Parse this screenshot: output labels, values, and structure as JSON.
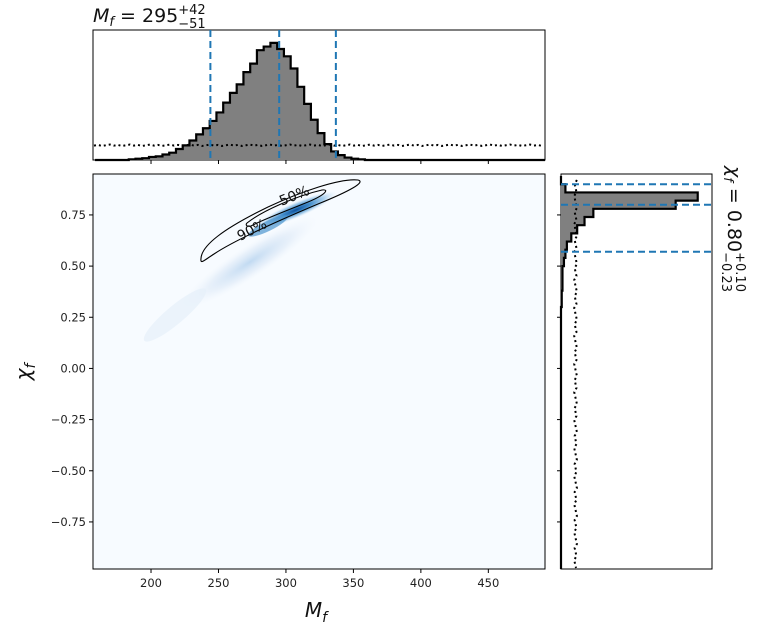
{
  "chart_data": {
    "type": "corner",
    "top_title": {
      "base": "M",
      "sub": "f",
      "eq": " = ",
      "value": "295",
      "plus": "+42",
      "minus": "−51"
    },
    "right_title": {
      "base": "χ",
      "sub": "f",
      "eq": " = ",
      "value": "0.80",
      "plus": "+0.10",
      "minus": "−0.23"
    },
    "xlabel": {
      "base": "M",
      "sub": "f"
    },
    "ylabel": {
      "base": "χ",
      "sub": "f"
    },
    "x_range": [
      157,
      492
    ],
    "y_range": [
      -0.98,
      0.95
    ],
    "x_ticks": [
      200,
      250,
      300,
      350,
      400,
      450
    ],
    "x_tick_labels": [
      "200",
      "250",
      "300",
      "350",
      "400",
      "450"
    ],
    "y_ticks": [
      0.75,
      0.5,
      0.25,
      0.0,
      -0.25,
      -0.5,
      -0.75
    ],
    "y_tick_labels": [
      "0.75",
      "0.50",
      "0.25",
      "0.00",
      "−0.25",
      "−0.50",
      "−0.75"
    ],
    "mf_quantiles": [
      244,
      295,
      337
    ],
    "chi_quantiles": [
      0.57,
      0.8,
      0.9
    ],
    "contour_labels": [
      "50%",
      "90%"
    ],
    "mf_histogram": {
      "bin_start": 158.5,
      "bin_width": 5,
      "counts": [
        0,
        0,
        0,
        0,
        0,
        0.5,
        1,
        1.5,
        2.5,
        3,
        4.5,
        6,
        9,
        12,
        16,
        21,
        26,
        32,
        39,
        47,
        55,
        62,
        72,
        79,
        90,
        93,
        96,
        91,
        85,
        75,
        60,
        46,
        33,
        22,
        13,
        7,
        4,
        2,
        1,
        0.5,
        0,
        0,
        0,
        0,
        0,
        0,
        0,
        0,
        0,
        0,
        0,
        0,
        0,
        0,
        0,
        0,
        0,
        0,
        0,
        0,
        0,
        0,
        0,
        0,
        0,
        0,
        0
      ],
      "max": 100
    },
    "mf_prior_level": 12,
    "chi_histogram": {
      "bin_start": 0.94,
      "bin_width": 0.04,
      "counts": [
        0,
        3,
        93,
        78,
        22,
        16,
        11,
        7,
        4,
        3,
        2,
        1,
        1,
        1,
        0.5,
        0.5,
        0,
        0,
        0,
        0,
        0,
        0,
        0,
        0,
        0,
        0,
        0,
        0,
        0,
        0,
        0,
        0,
        0,
        0,
        0,
        0,
        0,
        0,
        0,
        0,
        0,
        0,
        0,
        0,
        0,
        0,
        0,
        0
      ],
      "max": 100
    },
    "chi_prior_level": 10
  }
}
